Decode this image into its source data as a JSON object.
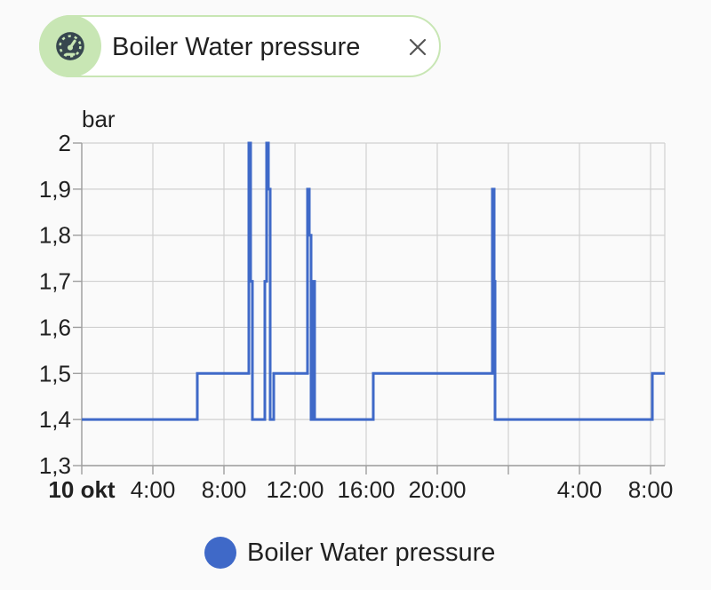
{
  "entity_chip": {
    "label": "Boiler Water pressure",
    "icon": "gauge-icon",
    "close_icon": "close-icon",
    "icon_bg_color": "#c8e6b4"
  },
  "legend": {
    "label": "Boiler Water pressure",
    "color": "#3f69c8"
  },
  "chart_data": {
    "type": "line",
    "step": true,
    "ylabel": "bar",
    "xlabel": "",
    "ylim": [
      1.3,
      2.0
    ],
    "yticks": [
      {
        "value": 1.3,
        "label": "1,3"
      },
      {
        "value": 1.4,
        "label": "1,4"
      },
      {
        "value": 1.5,
        "label": "1,5"
      },
      {
        "value": 1.6,
        "label": "1,6"
      },
      {
        "value": 1.7,
        "label": "1,7"
      },
      {
        "value": 1.8,
        "label": "1,8"
      },
      {
        "value": 1.9,
        "label": "1,9"
      },
      {
        "value": 2.0,
        "label": "2"
      }
    ],
    "x_unit": "hours since 10 okt 00:00",
    "xlim": [
      0,
      32.8
    ],
    "xticks": [
      {
        "value": 0,
        "label": "10 okt",
        "bold": true
      },
      {
        "value": 4,
        "label": "4:00"
      },
      {
        "value": 8,
        "label": "8:00"
      },
      {
        "value": 12,
        "label": "12:00"
      },
      {
        "value": 16,
        "label": "16:00"
      },
      {
        "value": 20,
        "label": "20:00"
      },
      {
        "value": 24,
        "label": "",
        "bold": false
      },
      {
        "value": 28,
        "label": "4:00"
      },
      {
        "value": 32,
        "label": "8:00"
      }
    ],
    "grid": true,
    "legend_position": "bottom-center",
    "series": [
      {
        "name": "Boiler Water pressure",
        "color": "#3f69c8",
        "points": [
          [
            0,
            1.4
          ],
          [
            6.5,
            1.4
          ],
          [
            6.5,
            1.5
          ],
          [
            9.4,
            1.5
          ],
          [
            9.4,
            2.0
          ],
          [
            9.5,
            2.0
          ],
          [
            9.5,
            1.7
          ],
          [
            9.6,
            1.7
          ],
          [
            9.6,
            1.4
          ],
          [
            10.3,
            1.4
          ],
          [
            10.3,
            1.7
          ],
          [
            10.4,
            1.7
          ],
          [
            10.4,
            2.0
          ],
          [
            10.5,
            2.0
          ],
          [
            10.5,
            1.9
          ],
          [
            10.6,
            1.9
          ],
          [
            10.6,
            1.4
          ],
          [
            10.8,
            1.4
          ],
          [
            10.8,
            1.5
          ],
          [
            12.7,
            1.5
          ],
          [
            12.7,
            1.9
          ],
          [
            12.8,
            1.9
          ],
          [
            12.8,
            1.8
          ],
          [
            12.9,
            1.8
          ],
          [
            12.9,
            1.4
          ],
          [
            13.0,
            1.4
          ],
          [
            13.0,
            1.7
          ],
          [
            13.1,
            1.7
          ],
          [
            13.1,
            1.4
          ],
          [
            16.4,
            1.4
          ],
          [
            16.4,
            1.5
          ],
          [
            23.1,
            1.5
          ],
          [
            23.1,
            1.9
          ],
          [
            23.2,
            1.9
          ],
          [
            23.2,
            1.7
          ],
          [
            23.25,
            1.7
          ],
          [
            23.25,
            1.4
          ],
          [
            32.1,
            1.4
          ],
          [
            32.1,
            1.5
          ],
          [
            32.8,
            1.5
          ]
        ]
      }
    ]
  }
}
